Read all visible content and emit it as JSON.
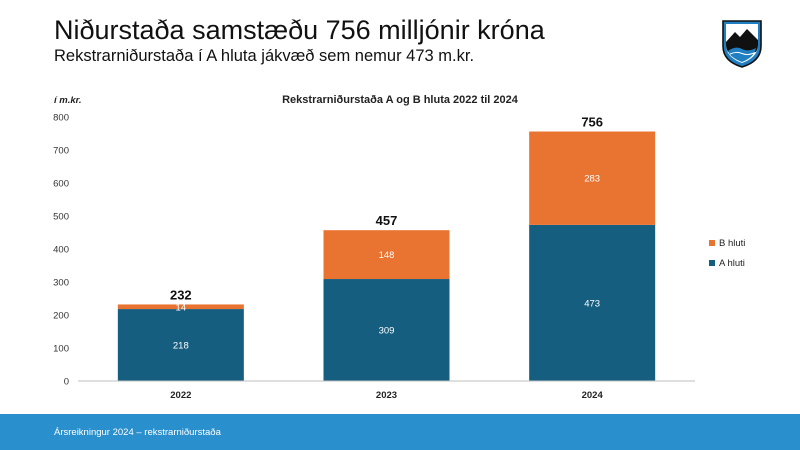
{
  "header": {
    "title": "Niðurstaða samstæðu 756 milljónir króna",
    "subtitle": "Rekstrarniðurstaða í A hluta jákvæð sem nemur 473 m.kr."
  },
  "logo": {
    "icon": "municipal-crest-icon"
  },
  "footer": {
    "text": "Ársreikningur 2024 – rekstrarniðurstaða"
  },
  "chart_data": {
    "type": "bar",
    "stacked": true,
    "title": "Rekstrarniðurstaða A og B hluta 2022 til 2024",
    "ylabel": "í m.kr.",
    "xlabel": "",
    "ylim": [
      0,
      800
    ],
    "yticks": [
      0,
      100,
      200,
      300,
      400,
      500,
      600,
      700,
      800
    ],
    "categories": [
      "2022",
      "2023",
      "2024"
    ],
    "series": [
      {
        "name": "A hluti",
        "values": [
          218,
          309,
          473
        ],
        "color": "#165e80"
      },
      {
        "name": "B hluti",
        "values": [
          14,
          148,
          283
        ],
        "color": "#e97432"
      }
    ],
    "totals": [
      232,
      457,
      756
    ],
    "legend": "right",
    "grid": false
  }
}
